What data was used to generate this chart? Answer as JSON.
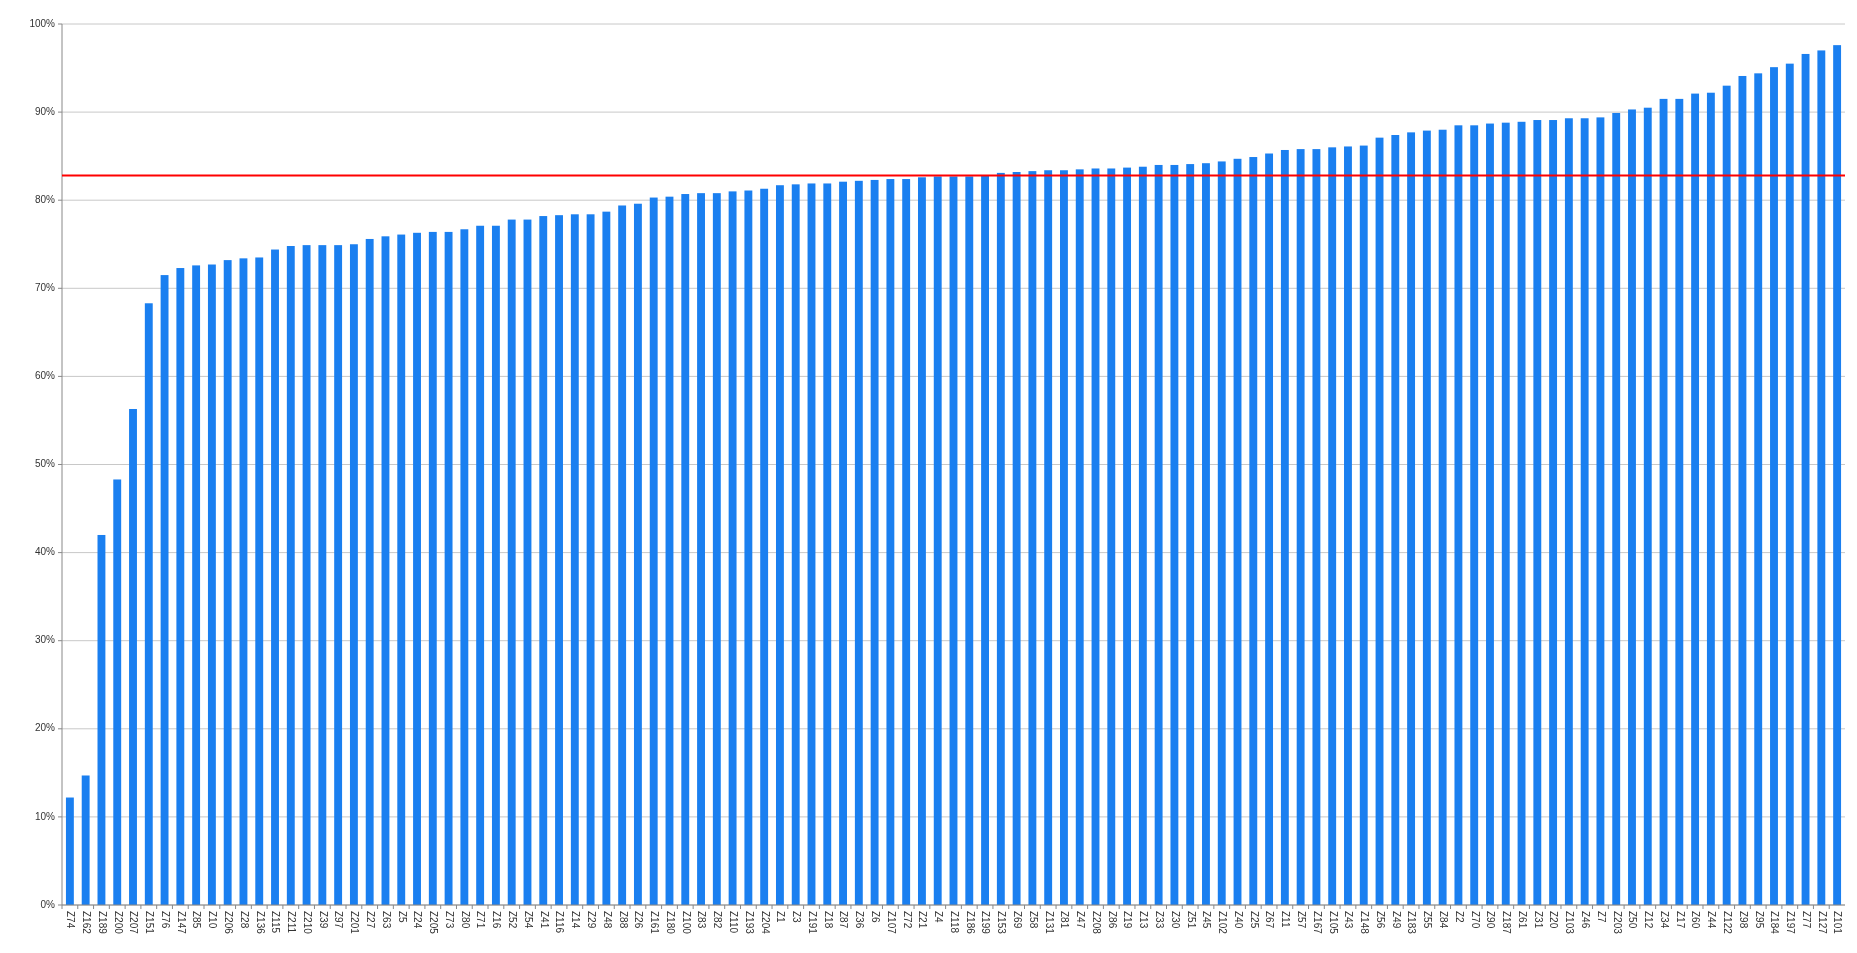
{
  "chart_data": {
    "type": "bar",
    "categories": [
      "Z74",
      "Z162",
      "Z189",
      "Z200",
      "Z207",
      "Z151",
      "Z76",
      "Z147",
      "Z85",
      "Z10",
      "Z206",
      "Z28",
      "Z136",
      "Z115",
      "Z211",
      "Z210",
      "Z39",
      "Z97",
      "Z201",
      "Z27",
      "Z63",
      "Z5",
      "Z24",
      "Z205",
      "Z73",
      "Z80",
      "Z71",
      "Z16",
      "Z52",
      "Z54",
      "Z41",
      "Z116",
      "Z14",
      "Z29",
      "Z48",
      "Z88",
      "Z26",
      "Z161",
      "Z180",
      "Z100",
      "Z83",
      "Z82",
      "Z110",
      "Z193",
      "Z204",
      "Z1",
      "Z3",
      "Z191",
      "Z18",
      "Z87",
      "Z36",
      "Z6",
      "Z107",
      "Z72",
      "Z21",
      "Z4",
      "Z118",
      "Z186",
      "Z199",
      "Z153",
      "Z69",
      "Z58",
      "Z131",
      "Z81",
      "Z47",
      "Z208",
      "Z86",
      "Z19",
      "Z13",
      "Z33",
      "Z30",
      "Z51",
      "Z45",
      "Z102",
      "Z40",
      "Z25",
      "Z67",
      "Z11",
      "Z57",
      "Z167",
      "Z105",
      "Z43",
      "Z148",
      "Z56",
      "Z49",
      "Z183",
      "Z55",
      "Z84",
      "Z2",
      "Z70",
      "Z90",
      "Z187",
      "Z61",
      "Z31",
      "Z20",
      "Z103",
      "Z46",
      "Z7",
      "Z203",
      "Z50",
      "Z12",
      "Z34",
      "Z17",
      "Z60",
      "Z44",
      "Z122",
      "Z98",
      "Z95",
      "Z184",
      "Z197",
      "Z77",
      "Z127",
      "Z101"
    ],
    "values": [
      12.2,
      14.7,
      42,
      48.3,
      56.3,
      68.3,
      71.5,
      72.3,
      72.6,
      72.7,
      73.2,
      73.4,
      73.5,
      74.4,
      74.8,
      74.9,
      74.9,
      74.9,
      75.0,
      75.6,
      75.9,
      76.1,
      76.3,
      76.4,
      76.4,
      76.7,
      77.1,
      77.1,
      77.8,
      77.8,
      78.2,
      78.3,
      78.4,
      78.4,
      78.7,
      79.4,
      79.6,
      80.3,
      80.4,
      80.7,
      80.8,
      80.8,
      81.0,
      81.1,
      81.3,
      81.7,
      81.8,
      81.9,
      81.9,
      82.1,
      82.2,
      82.3,
      82.4,
      82.4,
      82.6,
      82.7,
      82.7,
      82.7,
      82.8,
      83.1,
      83.2,
      83.3,
      83.4,
      83.4,
      83.5,
      83.6,
      83.6,
      83.7,
      83.8,
      84.0,
      84.0,
      84.1,
      84.2,
      84.4,
      84.7,
      84.9,
      85.3,
      85.7,
      85.8,
      85.8,
      86.0,
      86.1,
      86.2,
      87.1,
      87.4,
      87.7,
      87.9,
      88.0,
      88.5,
      88.5,
      88.7,
      88.8,
      88.9,
      89.1,
      89.1,
      89.3,
      89.3,
      89.4,
      89.9,
      90.3,
      90.5,
      91.5,
      91.5,
      92.1,
      92.2,
      93.0,
      94.1,
      94.4,
      95.1,
      95.5,
      96.6,
      97.0,
      97.6
    ],
    "color": "#1a7ff0",
    "ylim": [
      0,
      100
    ],
    "yticks": [
      {
        "value": 0,
        "label": "0%"
      },
      {
        "value": 10,
        "label": "10%"
      },
      {
        "value": 20,
        "label": "20%"
      },
      {
        "value": 30,
        "label": "30%"
      },
      {
        "value": 40,
        "label": "40%"
      },
      {
        "value": 50,
        "label": "50%"
      },
      {
        "value": 60,
        "label": "60%"
      },
      {
        "value": 70,
        "label": "70%"
      },
      {
        "value": 80,
        "label": "80%"
      },
      {
        "value": 90,
        "label": "90%"
      },
      {
        "value": 100,
        "label": "100%"
      }
    ],
    "grid": "y",
    "ref_lines": [
      {
        "axis": "y",
        "value": 82.8,
        "color": "#ff0000"
      }
    ]
  }
}
